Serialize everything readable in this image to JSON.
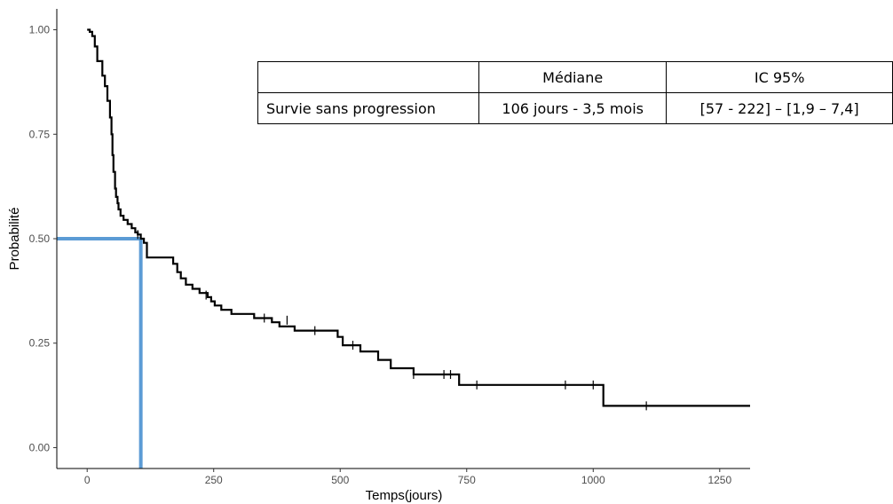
{
  "chart_data": {
    "type": "line",
    "title": "",
    "xlabel": "Temps(jours)",
    "ylabel": "Probabilité",
    "xlim": [
      -60,
      1310
    ],
    "ylim": [
      -0.05,
      1.05
    ],
    "xticks": [
      0,
      250,
      500,
      750,
      1000,
      1250
    ],
    "yticks": [
      0.0,
      0.25,
      0.5,
      0.75,
      1.0
    ],
    "xtick_labels": [
      "0",
      "250",
      "500",
      "750",
      "1000",
      "1250"
    ],
    "ytick_labels": [
      "0.00",
      "0.25",
      "0.50",
      "0.75",
      "1.00"
    ],
    "grid": false,
    "series": [
      {
        "style": "step",
        "color": "#000000",
        "points": [
          [
            0,
            1.0
          ],
          [
            5,
            0.995
          ],
          [
            10,
            0.985
          ],
          [
            15,
            0.96
          ],
          [
            20,
            0.925
          ],
          [
            30,
            0.89
          ],
          [
            35,
            0.865
          ],
          [
            40,
            0.83
          ],
          [
            45,
            0.79
          ],
          [
            48,
            0.75
          ],
          [
            50,
            0.7
          ],
          [
            52,
            0.66
          ],
          [
            55,
            0.62
          ],
          [
            57,
            0.6
          ],
          [
            60,
            0.585
          ],
          [
            62,
            0.57
          ],
          [
            66,
            0.555
          ],
          [
            72,
            0.545
          ],
          [
            80,
            0.535
          ],
          [
            88,
            0.525
          ],
          [
            95,
            0.515
          ],
          [
            100,
            0.51
          ],
          [
            106,
            0.5
          ],
          [
            112,
            0.49
          ],
          [
            118,
            0.455
          ],
          [
            170,
            0.44
          ],
          [
            178,
            0.42
          ],
          [
            185,
            0.405
          ],
          [
            195,
            0.39
          ],
          [
            208,
            0.38
          ],
          [
            222,
            0.37
          ],
          [
            238,
            0.36
          ],
          [
            245,
            0.35
          ],
          [
            252,
            0.34
          ],
          [
            265,
            0.33
          ],
          [
            285,
            0.32
          ],
          [
            330,
            0.31
          ],
          [
            365,
            0.3
          ],
          [
            380,
            0.29
          ],
          [
            410,
            0.28
          ],
          [
            495,
            0.265
          ],
          [
            505,
            0.245
          ],
          [
            540,
            0.23
          ],
          [
            575,
            0.21
          ],
          [
            600,
            0.19
          ],
          [
            645,
            0.175
          ],
          [
            735,
            0.15
          ],
          [
            1020,
            0.1
          ],
          [
            1310,
            0.1
          ]
        ]
      }
    ],
    "censor_marks": [
      [
        100,
        0.51
      ],
      [
        235,
        0.365
      ],
      [
        350,
        0.31
      ],
      [
        395,
        0.305
      ],
      [
        450,
        0.28
      ],
      [
        525,
        0.245
      ],
      [
        645,
        0.175
      ],
      [
        705,
        0.175
      ],
      [
        718,
        0.175
      ],
      [
        770,
        0.15
      ],
      [
        945,
        0.15
      ],
      [
        1000,
        0.15
      ],
      [
        1105,
        0.1
      ]
    ],
    "median_marker": {
      "x": 106,
      "y": 0.5,
      "color": "#5b9bd5"
    },
    "table": {
      "header": [
        "",
        "Médiane",
        "IC 95%"
      ],
      "rows": [
        [
          "Survie sans progression",
          "106 jours - 3,5 mois",
          "[57 - 222] – [1,9 – 7,4]"
        ]
      ]
    }
  }
}
